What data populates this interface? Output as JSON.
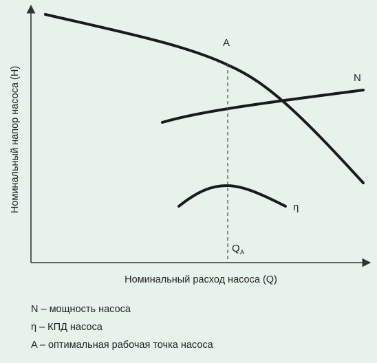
{
  "diagram": {
    "y_axis_label": "Номинальный напор насоса (H)",
    "x_axis_label": "Номинальный расход насоса (Q)",
    "point_label": "A",
    "curve_power_label": "N",
    "curve_efficiency_label": "η",
    "flow_marker_main": "Q",
    "flow_marker_sub": "A",
    "curve_color": "#1a1a1a",
    "axis_color": "#333333"
  },
  "legend": {
    "items": [
      "N – мощность насоса",
      "η – КПД насоса",
      "A – оптимальная рабочая точка насоса"
    ]
  }
}
